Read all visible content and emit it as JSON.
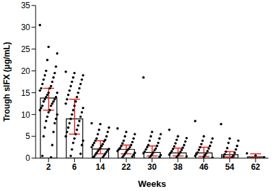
{
  "chart_data": {
    "type": "bar",
    "x_label": "Weeks",
    "y_label": "Trough sIFX (μg/mL)",
    "categories": [
      "2",
      "6",
      "14",
      "22",
      "30",
      "38",
      "46",
      "54",
      "62"
    ],
    "values": [
      13.8,
      9.0,
      2.1,
      2.0,
      1.3,
      1.2,
      1.2,
      0.8,
      0.3
    ],
    "color": "#ffffff",
    "error_bars": {
      "low": [
        11,
        5.5,
        1,
        1,
        0.5,
        0.5,
        0.4,
        0.3,
        0.1
      ],
      "high": [
        16,
        13.5,
        4,
        3,
        2.8,
        2.3,
        2.5,
        1.5,
        1.0
      ],
      "color": "#e8251f"
    },
    "points": {
      "color": "#000000",
      "values": [
        [
          30.5,
          25.5,
          24,
          22.5,
          21,
          20,
          19.5,
          19,
          18.5,
          18,
          17.5,
          17,
          16.5,
          16,
          16,
          15.5,
          15,
          15,
          14.5,
          14,
          14,
          13.5,
          13.5,
          13,
          13,
          12.5,
          12,
          12,
          11.5,
          11,
          11,
          10.5,
          10,
          9.5,
          9,
          8.5,
          8,
          7,
          6,
          5,
          3,
          0.5,
          0.2
        ],
        [
          19.8,
          19.5,
          19,
          18.5,
          18,
          17.5,
          17,
          16.5,
          16,
          15.5,
          15,
          14.5,
          14,
          13.5,
          13,
          12.5,
          12,
          11.5,
          11,
          10.5,
          10,
          9.5,
          9,
          8.5,
          8,
          7.5,
          7,
          6.5,
          6,
          5.5,
          5,
          4.5,
          4,
          3.5,
          3,
          2,
          1,
          0.5
        ],
        [
          8,
          7.8,
          7,
          6.5,
          6,
          5.5,
          5,
          4.5,
          4.2,
          4,
          3.8,
          3.5,
          3.2,
          3,
          2.8,
          2.5,
          2.3,
          2.1,
          2,
          1.8,
          1.6,
          1.4,
          1.2,
          1,
          0.8,
          0.6,
          0.4,
          0.2,
          0.1
        ],
        [
          6.8,
          6,
          5.5,
          5,
          4.5,
          4,
          3.7,
          3.4,
          3,
          2.8,
          2.5,
          2.3,
          2.1,
          2,
          1.8,
          1.6,
          1.4,
          1.2,
          1,
          0.8,
          0.6,
          0.4,
          0.2
        ],
        [
          18.5,
          6,
          5.5,
          5,
          4.5,
          4,
          3.5,
          3,
          2.8,
          2.5,
          2.2,
          2,
          1.8,
          1.5,
          1.3,
          1.1,
          0.9,
          0.7,
          0.5,
          0.3,
          0.1
        ],
        [
          6.5,
          5,
          4.6,
          4.2,
          3.8,
          3.4,
          3,
          2.7,
          2.4,
          2.1,
          1.9,
          1.6,
          1.4,
          1.2,
          1,
          0.8,
          0.6,
          0.4,
          0.2
        ],
        [
          8.5,
          5,
          4.5,
          4,
          3.6,
          3.2,
          2.8,
          2.5,
          2.2,
          1.9,
          1.6,
          1.3,
          1.1,
          0.9,
          0.7,
          0.5,
          0.3,
          0.1
        ],
        [
          7.8,
          4.5,
          4,
          3.5,
          2.8,
          2.3,
          2,
          1.5,
          1.2,
          0.9,
          0.6,
          0.4,
          0.2
        ],
        [
          1.1,
          0.6,
          0.2
        ]
      ]
    },
    "ylim": [
      0,
      35
    ],
    "yticks": [
      0,
      5,
      10,
      15,
      20,
      25,
      30,
      35
    ]
  }
}
